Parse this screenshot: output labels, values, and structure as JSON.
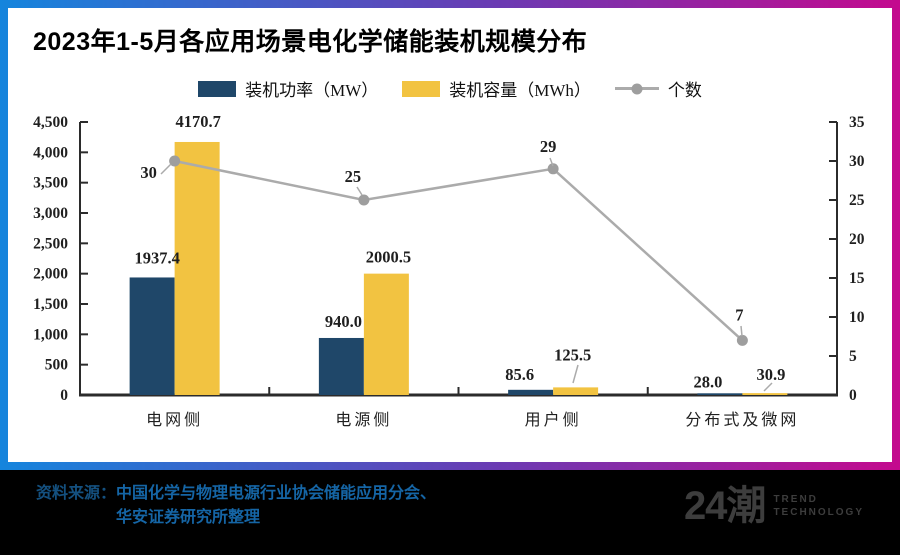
{
  "header": {
    "title": "2023年1-5月各应用场景电化学储能装机规模分布"
  },
  "legend": [
    {
      "label": "装机功率（MW）",
      "type": "bar",
      "series": "power"
    },
    {
      "label": "装机容量（MWh）",
      "type": "bar",
      "series": "capacity"
    },
    {
      "label": "个数",
      "type": "line",
      "series": "count"
    }
  ],
  "chart_data": {
    "type": "bar+line",
    "title": "2023年1-5月各应用场景电化学储能装机规模分布",
    "categories": [
      "电网侧",
      "电源侧",
      "用户侧",
      "分布式及微网"
    ],
    "series": [
      {
        "name": "装机功率（MW）",
        "type": "bar",
        "axis": "left",
        "color": "#1F4769",
        "values": [
          1937.4,
          940.0,
          85.6,
          28.0
        ],
        "labels": [
          "1937.4",
          "940.0",
          "85.6",
          "28.0"
        ]
      },
      {
        "name": "装机容量（MWh）",
        "type": "bar",
        "axis": "left",
        "color": "#F2C341",
        "values": [
          4170.7,
          2000.5,
          125.5,
          30.9
        ],
        "labels": [
          "4170.7",
          "2000.5",
          "125.5",
          "30.9"
        ]
      },
      {
        "name": "个数",
        "type": "line",
        "axis": "right",
        "color": "#ABABAB",
        "values": [
          30,
          25,
          29,
          7
        ],
        "labels": [
          "30",
          "25",
          "29",
          "7"
        ]
      }
    ],
    "left_axis": {
      "min": 0,
      "max": 4500,
      "step": 500,
      "tick_labels": [
        "4,500",
        "4,000",
        "3,500",
        "3,000",
        "2,500",
        "2,000",
        "1,500",
        "1,000",
        "500",
        "0"
      ]
    },
    "right_axis": {
      "min": 0,
      "max": 35,
      "step": 5,
      "tick_labels": [
        "35",
        "30",
        "25",
        "20",
        "15",
        "10",
        "5",
        "0"
      ]
    },
    "grid": false,
    "legend_position": "top"
  },
  "footer": {
    "source_label": "资料来源：",
    "source_line1": "中国化学与物理电源行业协会储能应用分会、",
    "source_line2": "华安证券研究所整理"
  },
  "logo": {
    "mark": "24潮",
    "text_line1": "TREND",
    "text_line2": "TECHNOLOGY"
  },
  "colors": {
    "power_bar": "#1F4769",
    "capacity_bar": "#F2C341",
    "count_line": "#ABABAB",
    "count_marker": "#9E9E9E",
    "axis": "#2B2B2B",
    "title_text": "#000000",
    "frame_gradient_start": "#1585DD",
    "frame_gradient_mid": "#6A3BB3",
    "frame_gradient_end": "#C40A8E",
    "footer_bg": "#000000",
    "source_label": "#14507F",
    "source_text": "#1565A5",
    "logo": "#3D3D3D"
  }
}
